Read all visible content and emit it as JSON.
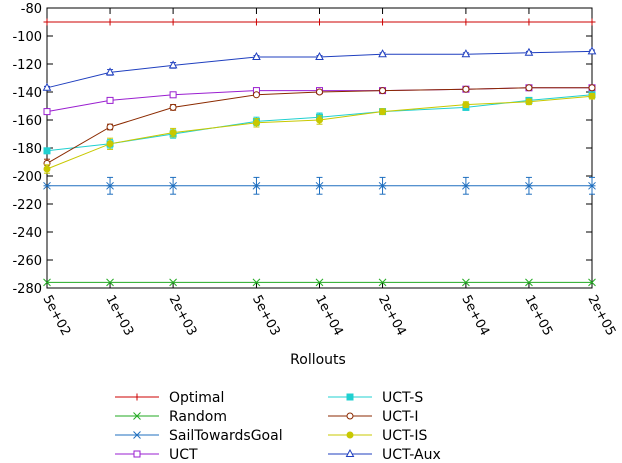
{
  "chart_data": {
    "type": "line",
    "title": "",
    "xlabel": "Rollouts",
    "ylabel": "",
    "x_scale": "log",
    "x": [
      500,
      1000,
      2000,
      5000,
      10000,
      20000,
      50000,
      100000,
      200000
    ],
    "x_tick_labels": [
      "5e+02",
      "1e+03",
      "2e+03",
      "5e+03",
      "1e+04",
      "2e+04",
      "5e+04",
      "1e+05",
      "2e+05"
    ],
    "ylim": [
      -280,
      -80
    ],
    "y_ticks": [
      -80,
      -100,
      -120,
      -140,
      -160,
      -180,
      -200,
      -220,
      -240,
      -260,
      -280
    ],
    "legend_position": "bottom",
    "series": [
      {
        "name": "Optimal",
        "color": "#cc0000",
        "marker": "plus",
        "values": [
          -90,
          -90,
          -90,
          -90,
          -90,
          -90,
          -90,
          -90,
          -90
        ],
        "err": [
          0,
          0,
          0,
          0,
          0,
          0,
          0,
          0,
          0
        ]
      },
      {
        "name": "Random",
        "color": "#22aa22",
        "marker": "cross",
        "values": [
          -276,
          -276,
          -276,
          -276,
          -276,
          -276,
          -276,
          -276,
          -276
        ],
        "err": [
          0,
          0,
          0,
          0,
          0,
          0,
          0,
          0,
          0
        ]
      },
      {
        "name": "SailTowardsGoal",
        "color": "#1f6fbf",
        "marker": "star",
        "values": [
          -207,
          -207,
          -207,
          -207,
          -207,
          -207,
          -207,
          -207,
          -207
        ],
        "err": [
          0,
          6,
          6,
          6,
          6,
          6,
          6,
          6,
          6
        ]
      },
      {
        "name": "UCT",
        "color": "#9a1fd0",
        "marker": "square-open",
        "values": [
          -154,
          -146,
          -142,
          -139,
          -139,
          -139,
          -138,
          -137,
          -137
        ],
        "err": [
          1,
          1,
          1,
          1,
          1,
          1,
          1,
          1,
          1
        ]
      },
      {
        "name": "UCT-S",
        "color": "#20d0d0",
        "marker": "square-filled",
        "values": [
          -182,
          -177,
          -170,
          -161,
          -158,
          -154,
          -151,
          -146,
          -142
        ],
        "err": [
          2,
          3,
          3,
          3,
          3,
          2,
          2,
          2,
          1
        ]
      },
      {
        "name": "UCT-I",
        "color": "#8b2a00",
        "marker": "circle-open",
        "values": [
          -191,
          -165,
          -151,
          -142,
          -140,
          -139,
          -138,
          -137,
          -137
        ],
        "err": [
          3,
          2,
          2,
          1,
          1,
          1,
          1,
          1,
          1
        ]
      },
      {
        "name": "UCT-IS",
        "color": "#c8c800",
        "marker": "circle-filled",
        "values": [
          -195,
          -177,
          -169,
          -162,
          -160,
          -154,
          -149,
          -147,
          -143
        ],
        "err": [
          3,
          4,
          3,
          3,
          3,
          2,
          2,
          2,
          2
        ]
      },
      {
        "name": "UCT-Aux",
        "color": "#1f3fbf",
        "marker": "triangle-open",
        "values": [
          -137,
          -126,
          -121,
          -115,
          -115,
          -113,
          -113,
          -112,
          -111
        ],
        "err": [
          1,
          2,
          2,
          1,
          1,
          1,
          1,
          1,
          1
        ]
      }
    ]
  }
}
